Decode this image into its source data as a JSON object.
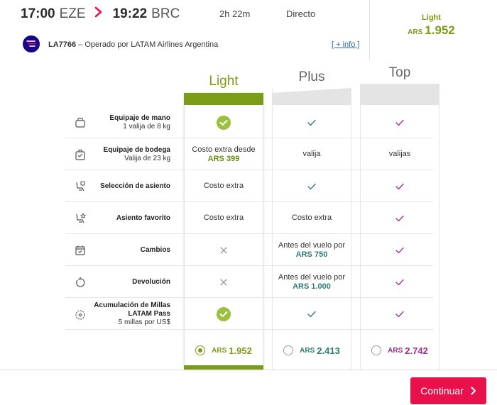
{
  "flight": {
    "depart_time": "17:00",
    "depart_code": "EZE",
    "arrive_time": "19:22",
    "arrive_code": "BRC",
    "duration": "2h 22m",
    "type": "Directo",
    "number": "LA7766",
    "operator": " – Operado por LATAM Airlines Argentina",
    "more_info": "[ + info ]"
  },
  "selected_fare": {
    "name": "Light",
    "currency": "ARS",
    "amount": "1.952"
  },
  "fares": [
    {
      "name": "Light",
      "currency": "ARS",
      "amount": "1.952",
      "color": "#7a9c16",
      "selected": true
    },
    {
      "name": "Plus",
      "currency": "ARS",
      "amount": "2.413",
      "color": "#2c7d6e",
      "selected": false
    },
    {
      "name": "Top",
      "currency": "ARS",
      "amount": "2.742",
      "color": "#9b2e8a",
      "selected": false
    }
  ],
  "rows": [
    {
      "icon": "carry-on-bag-icon",
      "label": "Equipaje de mano",
      "sub": "1 valija de 8 kg",
      "light": {
        "kind": "check-circle"
      },
      "plus": {
        "kind": "check"
      },
      "top": {
        "kind": "check"
      }
    },
    {
      "icon": "checked-bag-icon",
      "label": "Equipaje de bodega",
      "sub": "Valija de 23 kg",
      "light": {
        "kind": "text",
        "text": "Costo extra desde",
        "amount": "ARS 399"
      },
      "plus": {
        "kind": "text",
        "text": "valija"
      },
      "top": {
        "kind": "text",
        "text": "valijas"
      }
    },
    {
      "icon": "seat-icon",
      "label": "Selección de asiento",
      "sub": "",
      "light": {
        "kind": "text",
        "text": "Costo extra"
      },
      "plus": {
        "kind": "check"
      },
      "top": {
        "kind": "check"
      }
    },
    {
      "icon": "favorite-seat-icon",
      "label": "Asiento favorito",
      "sub": "",
      "light": {
        "kind": "text",
        "text": "Costo extra"
      },
      "plus": {
        "kind": "text",
        "text": "Costo extra"
      },
      "top": {
        "kind": "check"
      }
    },
    {
      "icon": "calendar-icon",
      "label": "Cambios",
      "sub": "",
      "light": {
        "kind": "cross"
      },
      "plus": {
        "kind": "text",
        "text": "Antes del vuelo por",
        "amount": "ARS 750"
      },
      "top": {
        "kind": "check"
      }
    },
    {
      "icon": "refund-icon",
      "label": "Devolución",
      "sub": "",
      "light": {
        "kind": "cross"
      },
      "plus": {
        "kind": "text",
        "text": "Antes del vuelo por",
        "amount": "ARS 1.000"
      },
      "top": {
        "kind": "check"
      }
    },
    {
      "icon": "miles-icon",
      "label": "Acumulación de Millas LATAM Pass",
      "sub": "5 millas por US$",
      "light": {
        "kind": "check-circle"
      },
      "plus": {
        "kind": "check"
      },
      "top": {
        "kind": "check"
      }
    }
  ],
  "footer": {
    "continue_label": "Continuar"
  },
  "colors": {
    "light": "#7a9c16",
    "plus": "#2c7d6e",
    "top": "#9b2e8a",
    "accent": "#e8114b",
    "brand": "#1b0088"
  }
}
